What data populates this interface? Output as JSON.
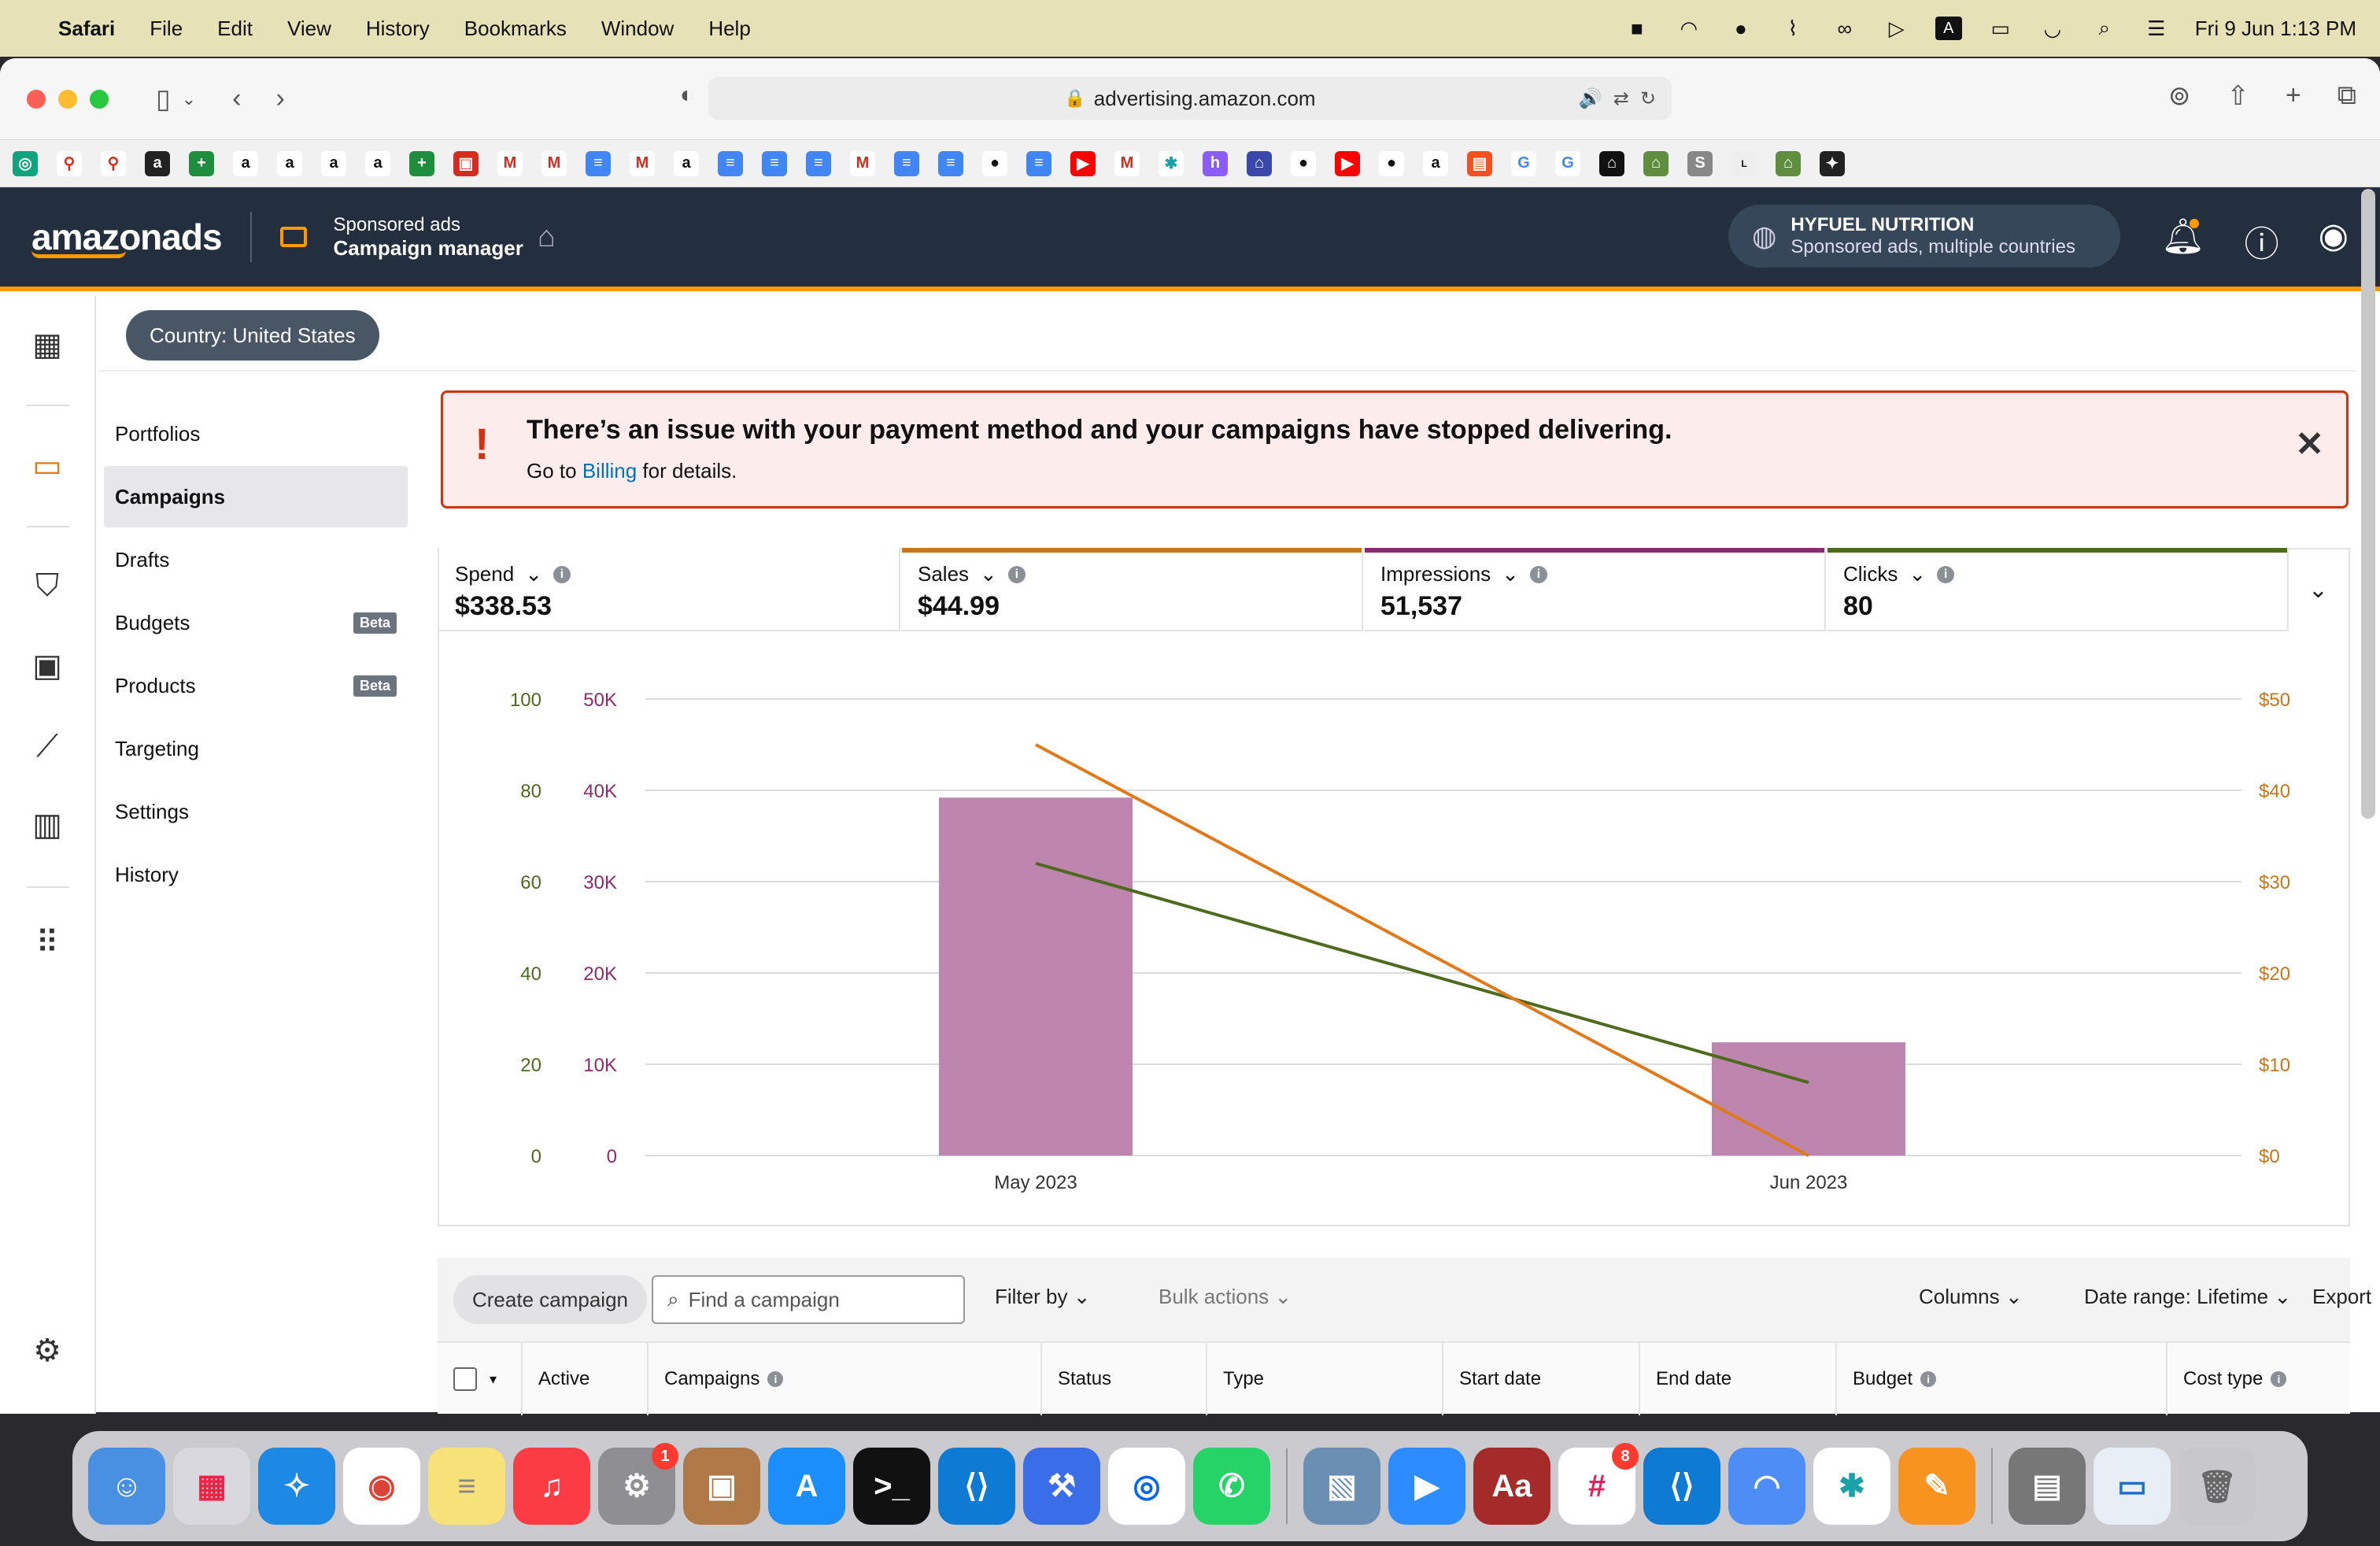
{
  "menubar": {
    "app": "Safari",
    "items": [
      "File",
      "Edit",
      "View",
      "History",
      "Bookmarks",
      "Window",
      "Help"
    ],
    "clock": "Fri 9 Jun  1:13 PM",
    "input_source": "A"
  },
  "browser": {
    "url": "advertising.amazon.com"
  },
  "header": {
    "logo": "amazonads",
    "product_sub": "Sponsored ads",
    "product_main": "Campaign manager",
    "account_name": "HYFUEL NUTRITION",
    "account_desc": "Sponsored ads, multiple countries"
  },
  "country_filter": "Country: United States",
  "subnav": {
    "items": [
      {
        "label": "Portfolios"
      },
      {
        "label": "Campaigns"
      },
      {
        "label": "Drafts"
      },
      {
        "label": "Budgets",
        "badge": "Beta"
      },
      {
        "label": "Products",
        "badge": "Beta"
      },
      {
        "label": "Targeting"
      },
      {
        "label": "Settings"
      },
      {
        "label": "History"
      }
    ]
  },
  "alert": {
    "title": "There’s an issue with your payment method and your campaigns have stopped delivering.",
    "detail_prefix": "Go to ",
    "detail_link": "Billing",
    "detail_suffix": " for details."
  },
  "metrics": [
    {
      "label": "Spend",
      "value": "$338.53",
      "color": "#ffffff"
    },
    {
      "label": "Sales",
      "value": "$44.99",
      "color": "#c7761a"
    },
    {
      "label": "Impressions",
      "value": "51,537",
      "color": "#8c2a6e"
    },
    {
      "label": "Clicks",
      "value": "80",
      "color": "#4e6a1e"
    }
  ],
  "chart_data": {
    "type": "bar",
    "categories": [
      "May 2023",
      "Jun 2023"
    ],
    "series": [
      {
        "name": "Impressions",
        "type": "bar",
        "axis": "left-inner",
        "values": [
          39200,
          12400
        ],
        "color": "#be86ae"
      },
      {
        "name": "Clicks",
        "type": "line",
        "axis": "left-outer",
        "values": [
          64,
          16
        ],
        "color": "#4e6a1e"
      },
      {
        "name": "Sales",
        "type": "line",
        "axis": "right",
        "values": [
          45,
          0
        ],
        "color": "#e07a1a"
      }
    ],
    "axes": {
      "left_outer": {
        "ticks": [
          "0",
          "20",
          "40",
          "60",
          "80",
          "100"
        ],
        "range": [
          0,
          100
        ]
      },
      "left_inner": {
        "ticks": [
          "0",
          "10K",
          "20K",
          "30K",
          "40K",
          "50K"
        ],
        "range": [
          0,
          50000
        ]
      },
      "right": {
        "ticks": [
          "$0",
          "$10",
          "$20",
          "$30",
          "$40",
          "$50"
        ],
        "range": [
          0,
          50
        ]
      }
    },
    "grid": true
  },
  "campaign_toolbar": {
    "create": "Create campaign",
    "search_placeholder": "Find a campaign",
    "filter": "Filter by",
    "bulk": "Bulk actions",
    "columns": "Columns",
    "date_range": "Date range: Lifetime",
    "export": "Export"
  },
  "table_columns": [
    "Active",
    "Campaigns",
    "Status",
    "Type",
    "Start date",
    "End date",
    "Budget",
    "Cost type"
  ],
  "dock": {
    "badges": {
      "settings": "1",
      "slack": "8"
    }
  }
}
